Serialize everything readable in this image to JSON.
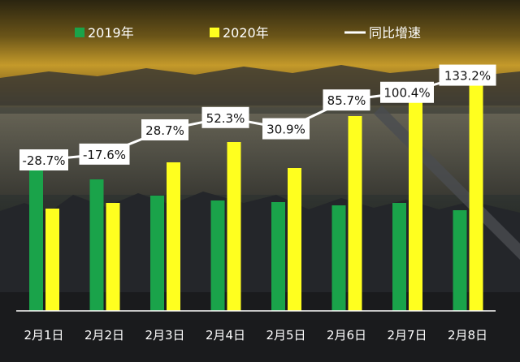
{
  "chart_data": {
    "type": "bar",
    "categories": [
      "2月1日",
      "2月2日",
      "2月3日",
      "2月4日",
      "2月5日",
      "2月6日",
      "2月7日",
      "2月8日"
    ],
    "series": [
      {
        "name": "2019年",
        "color": "#1aa34a",
        "values": [
          177,
          162,
          142,
          136,
          134,
          130,
          133,
          124
        ]
      },
      {
        "name": "2020年",
        "color": "#ffff1f",
        "values": [
          126,
          133,
          183,
          208,
          176,
          240,
          266,
          290
        ]
      }
    ],
    "growth": {
      "name": "同比增速",
      "color": "#ffffff",
      "labels": [
        "-28.7%",
        "-17.6%",
        "28.7%",
        "52.3%",
        "30.9%",
        "85.7%",
        "100.4%",
        "133.2%"
      ],
      "values": [
        -28.7,
        -17.6,
        28.7,
        52.3,
        30.9,
        85.7,
        100.4,
        133.2
      ]
    },
    "legend_position": "top",
    "grid": false
  }
}
